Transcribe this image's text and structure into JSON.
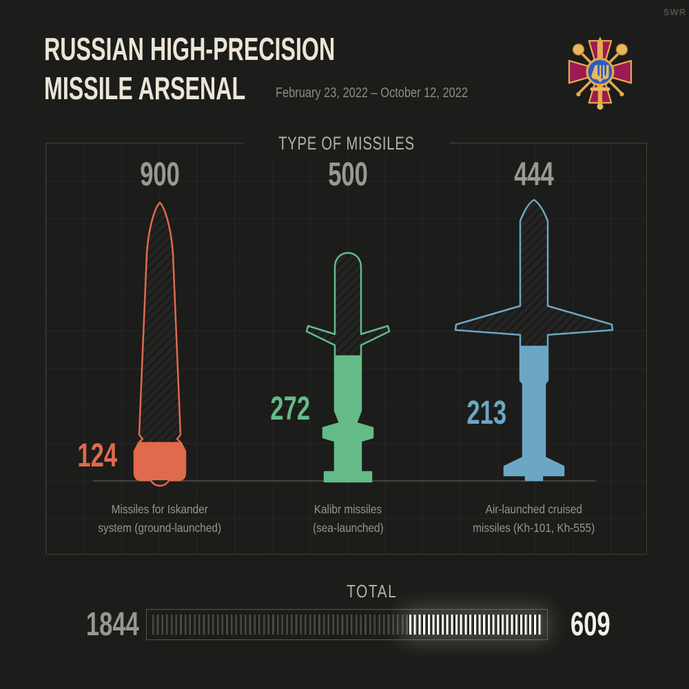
{
  "watermark": "SWR",
  "header": {
    "title_line1": "RUSSIAN HIGH-PRECISION",
    "title_line2": "MISSILE ARSENAL",
    "date_range": "February 23, 2022 – October 12, 2022"
  },
  "emblem": {
    "name": "ukraine-ministry-of-defence-emblem",
    "cross_color": "#9d1a52",
    "gold_color": "#e2ab4e",
    "circle_color": "#2a5bc4"
  },
  "chart_data": {
    "type": "bar",
    "title": "TYPE OF MISSILES",
    "grid": true,
    "categories": [
      "Missiles for Iskander system (ground-launched)",
      "Kalibr missiles (sea-launched)",
      "Air-launched cruised missiles (Kh-101, Kh-555)"
    ],
    "series": [
      {
        "name": "total",
        "values": [
          900,
          500,
          444
        ]
      },
      {
        "name": "remaining",
        "values": [
          124,
          272,
          213
        ]
      }
    ],
    "missiles": [
      {
        "name": "iskander",
        "total": 900,
        "remaining": 124,
        "color": "#e06a4d",
        "label_line1": "Missiles for Iskander",
        "label_line2": "system (ground-launched)"
      },
      {
        "name": "kalibr",
        "total": 500,
        "remaining": 272,
        "color": "#64bb88",
        "label_line1": "Kalibr missiles",
        "label_line2": "(sea-launched)"
      },
      {
        "name": "kh101-kh555",
        "total": 444,
        "remaining": 213,
        "color": "#6ba7c5",
        "label_line1": "Air-launched cruised",
        "label_line2": "missiles (Kh-101, Kh-555)"
      }
    ]
  },
  "total_bar": {
    "label": "TOTAL",
    "total": 1844,
    "remaining": 609
  }
}
